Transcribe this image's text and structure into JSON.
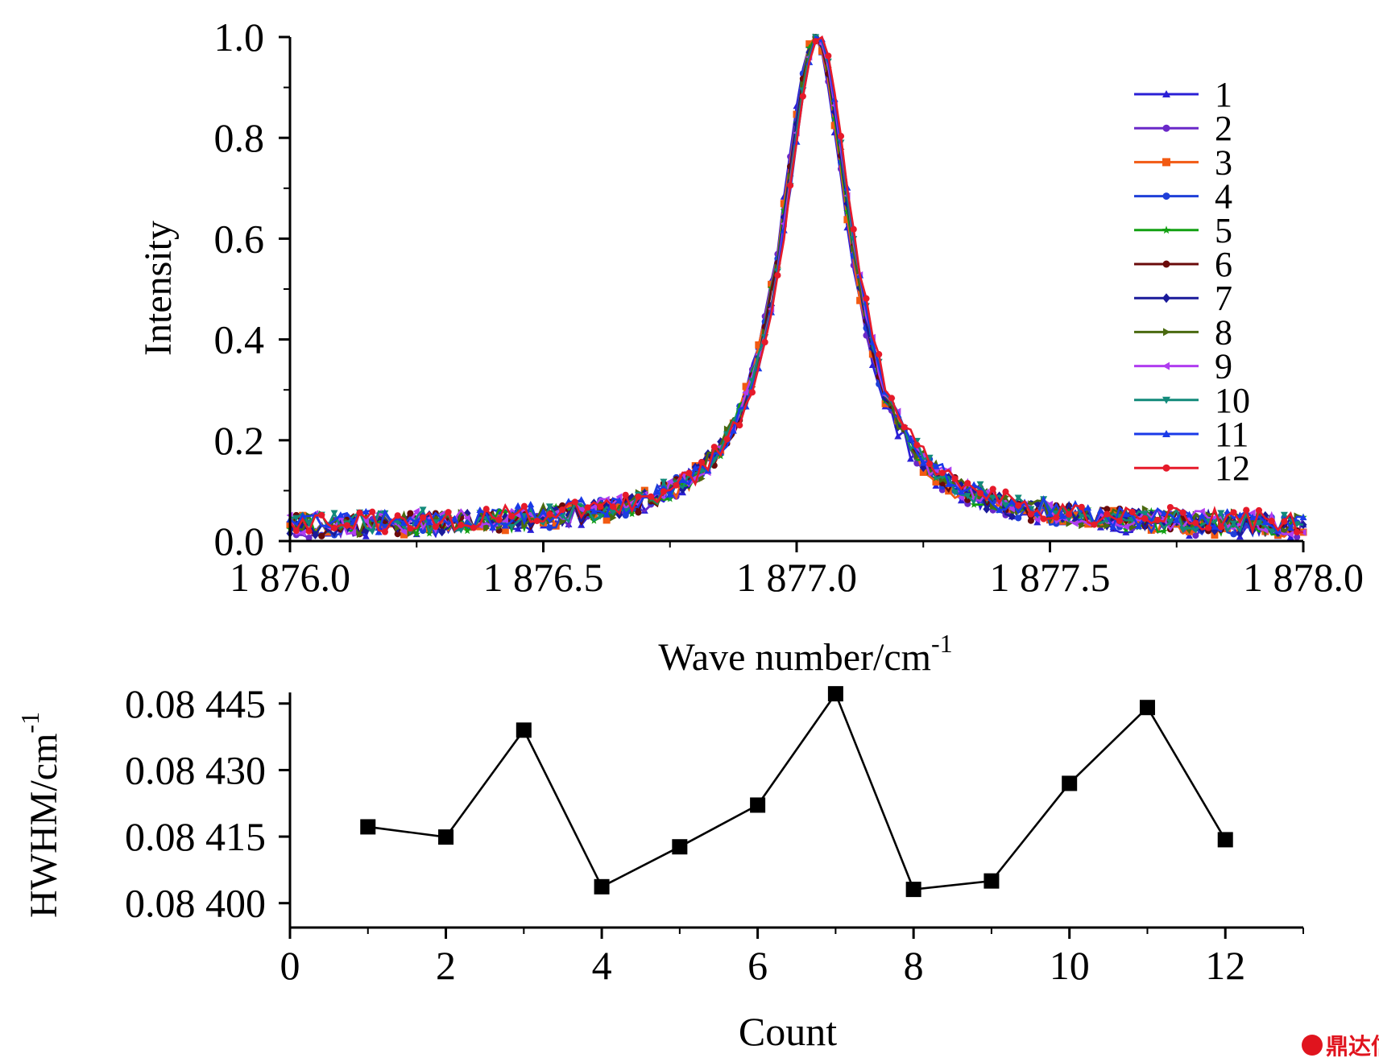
{
  "watermark": "鼎达信",
  "colors": {
    "axis": "#000000",
    "series": [
      "#2a1fd6",
      "#6a28c8",
      "#f25a12",
      "#1f3fd8",
      "#12a012",
      "#6a0a0a",
      "#1a1a9a",
      "#4a6a10",
      "#b03cf0",
      "#128a7a",
      "#1a3ae8",
      "#e61a2a"
    ],
    "watermark": "#e0141e"
  },
  "chart_data": [
    {
      "id": "spectrum",
      "type": "line",
      "xlabel": "Wave number/cm",
      "xlabel_sup": "-1",
      "ylabel": "Intensity",
      "xlim": [
        1876.0,
        1878.0
      ],
      "ylim": [
        0.0,
        1.0
      ],
      "xticks": [
        1876.0,
        1876.5,
        1877.0,
        1877.5,
        1878.0
      ],
      "xtick_labels": [
        "1 876.0",
        "1 876.5",
        "1 877.0",
        "1 877.5",
        "1 878.0"
      ],
      "yticks": [
        0.0,
        0.2,
        0.4,
        0.6,
        0.8,
        1.0
      ],
      "ytick_labels": [
        "0.0",
        "0.2",
        "0.4",
        "0.6",
        "0.8",
        "1.0"
      ],
      "legend_position": "top-right",
      "peak_center": 1877.04,
      "series": [
        {
          "name": "1",
          "marker": "triangle-up"
        },
        {
          "name": "2",
          "marker": "circle"
        },
        {
          "name": "3",
          "marker": "square"
        },
        {
          "name": "4",
          "marker": "circle"
        },
        {
          "name": "5",
          "marker": "star"
        },
        {
          "name": "6",
          "marker": "circle"
        },
        {
          "name": "7",
          "marker": "diamond"
        },
        {
          "name": "8",
          "marker": "triangle-right"
        },
        {
          "name": "9",
          "marker": "triangle-left"
        },
        {
          "name": "10",
          "marker": "triangle-down"
        },
        {
          "name": "11",
          "marker": "triangle-up"
        },
        {
          "name": "12",
          "marker": "circle"
        }
      ]
    },
    {
      "id": "hwhm",
      "type": "line",
      "xlabel": "Count",
      "ylabel": "HWHM/cm",
      "ylabel_sup": "-1",
      "xlim": [
        0,
        13
      ],
      "ylim": [
        0.083945,
        0.084475
      ],
      "xticks": [
        0,
        2,
        4,
        6,
        8,
        10,
        12
      ],
      "xtick_labels": [
        "0",
        "2",
        "4",
        "6",
        "8",
        "10",
        "12"
      ],
      "yticks": [
        0.084,
        0.08415,
        0.0843,
        0.08445
      ],
      "ytick_labels": [
        "0.08 400",
        "0.08 415",
        "0.08 430",
        "0.08 445"
      ],
      "marker": "square",
      "x": [
        1,
        2,
        3,
        4,
        5,
        6,
        7,
        8,
        9,
        10,
        11,
        12
      ],
      "y": [
        0.084172,
        0.084149,
        0.08439,
        0.084037,
        0.084127,
        0.084221,
        0.084472,
        0.084031,
        0.08405,
        0.08427,
        0.084441,
        0.084143
      ]
    }
  ]
}
